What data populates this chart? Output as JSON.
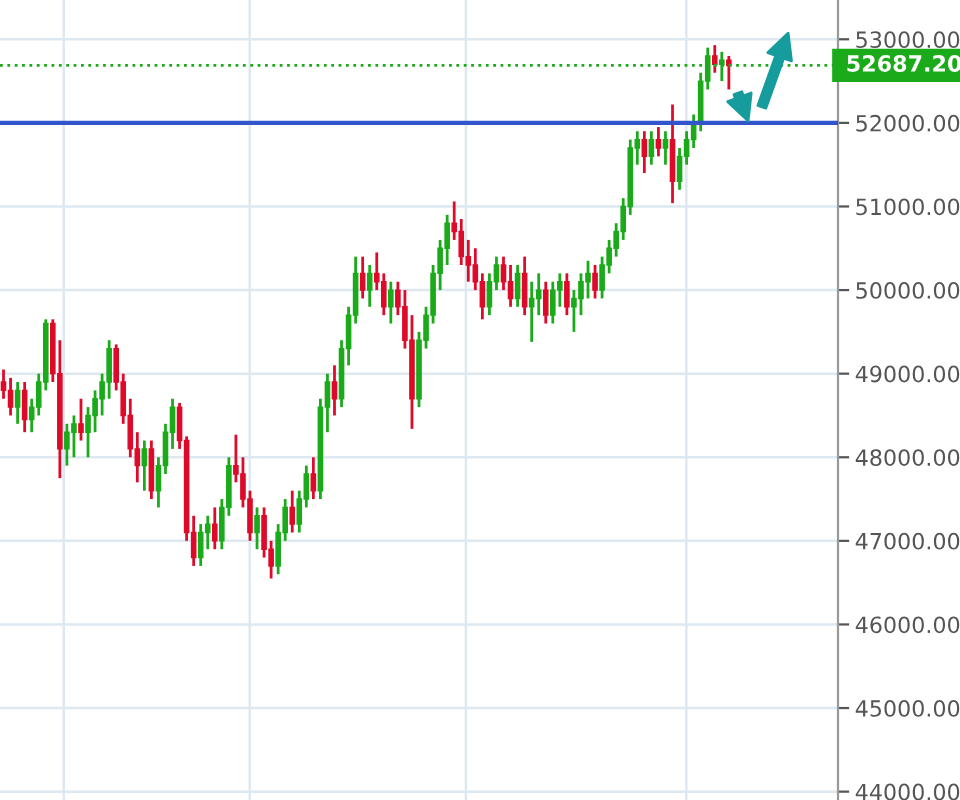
{
  "chart_data": {
    "type": "candlestick",
    "categories": [
      null,
      null,
      null,
      null,
      null,
      null,
      null,
      null,
      null,
      null,
      null,
      null,
      null,
      null,
      null,
      null,
      null,
      null,
      null,
      null,
      null,
      null,
      null,
      null,
      null,
      null,
      null,
      null,
      null,
      null,
      null,
      null,
      null,
      null,
      null,
      null,
      null,
      null,
      null,
      null,
      null,
      null,
      null,
      null,
      null,
      null,
      null,
      null,
      null,
      null,
      null,
      null,
      null,
      null,
      null,
      null,
      null,
      null,
      null,
      null,
      null,
      null,
      null,
      null,
      null,
      null,
      null,
      null,
      null,
      null,
      null,
      null,
      null,
      null,
      null,
      null,
      null,
      null,
      null,
      null,
      null,
      null,
      null,
      null,
      null,
      null,
      null,
      null,
      null,
      null,
      null,
      null,
      null,
      null,
      null,
      null,
      null,
      null,
      null,
      null,
      null,
      null,
      null,
      null,
      null,
      null,
      null,
      null,
      null,
      null,
      null,
      null,
      null,
      null,
      null,
      null,
      null,
      null,
      null
    ],
    "ohlc": [
      [
        48900,
        49050,
        48700,
        48800
      ],
      [
        48800,
        48950,
        48500,
        48600
      ],
      [
        48600,
        48900,
        48400,
        48800
      ],
      [
        48800,
        48900,
        48300,
        48450
      ],
      [
        48450,
        48700,
        48300,
        48600
      ],
      [
        48600,
        49000,
        48500,
        48900
      ],
      [
        48900,
        49650,
        48800,
        49600
      ],
      [
        49600,
        49650,
        48900,
        49000
      ],
      [
        49000,
        49400,
        47750,
        48100
      ],
      [
        48100,
        48400,
        47900,
        48300
      ],
      [
        48300,
        48500,
        48000,
        48400
      ],
      [
        48400,
        48700,
        48200,
        48300
      ],
      [
        48300,
        48600,
        48000,
        48500
      ],
      [
        48500,
        48800,
        48300,
        48700
      ],
      [
        48700,
        49000,
        48500,
        48900
      ],
      [
        48900,
        49400,
        48700,
        49300
      ],
      [
        49300,
        49350,
        48800,
        48900
      ],
      [
        48900,
        49000,
        48400,
        48500
      ],
      [
        48500,
        48700,
        48000,
        48100
      ],
      [
        48100,
        48300,
        47700,
        47900
      ],
      [
        47900,
        48200,
        47600,
        48100
      ],
      [
        48100,
        48200,
        47500,
        47600
      ],
      [
        47600,
        48000,
        47400,
        47900
      ],
      [
        47900,
        48400,
        47800,
        48300
      ],
      [
        48300,
        48700,
        48100,
        48600
      ],
      [
        48600,
        48650,
        48100,
        48200
      ],
      [
        48200,
        48250,
        47000,
        47100
      ],
      [
        47100,
        47300,
        46700,
        46800
      ],
      [
        46800,
        47200,
        46700,
        47100
      ],
      [
        47100,
        47300,
        46900,
        47200
      ],
      [
        47200,
        47400,
        46900,
        47000
      ],
      [
        47000,
        47500,
        46900,
        47400
      ],
      [
        47400,
        48000,
        47300,
        47900
      ],
      [
        47900,
        48270,
        47700,
        47800
      ],
      [
        47800,
        48000,
        47400,
        47500
      ],
      [
        47500,
        47600,
        47000,
        47100
      ],
      [
        47100,
        47400,
        46900,
        47300
      ],
      [
        47300,
        47400,
        46800,
        46900
      ],
      [
        46900,
        47000,
        46550,
        46700
      ],
      [
        46700,
        47200,
        46600,
        47100
      ],
      [
        47100,
        47500,
        47000,
        47400
      ],
      [
        47400,
        47600,
        47100,
        47200
      ],
      [
        47200,
        47600,
        47100,
        47500
      ],
      [
        47500,
        47900,
        47400,
        47800
      ],
      [
        47800,
        48000,
        47500,
        47600
      ],
      [
        47600,
        48700,
        47500,
        48600
      ],
      [
        48600,
        49000,
        48300,
        48900
      ],
      [
        48900,
        49100,
        48500,
        48700
      ],
      [
        48700,
        49400,
        48600,
        49300
      ],
      [
        49300,
        49800,
        49100,
        49700
      ],
      [
        49700,
        50400,
        49600,
        50200
      ],
      [
        50200,
        50400,
        49900,
        50000
      ],
      [
        50000,
        50300,
        49800,
        50200
      ],
      [
        50200,
        50450,
        50000,
        50100
      ],
      [
        50100,
        50200,
        49700,
        49800
      ],
      [
        49800,
        50100,
        49600,
        50000
      ],
      [
        50000,
        50100,
        49700,
        49800
      ],
      [
        49800,
        50000,
        49300,
        49400
      ],
      [
        49400,
        49700,
        48340,
        48700
      ],
      [
        48700,
        49500,
        48600,
        49400
      ],
      [
        49400,
        49800,
        49300,
        49700
      ],
      [
        49700,
        50300,
        49600,
        50200
      ],
      [
        50200,
        50600,
        50000,
        50500
      ],
      [
        50500,
        50900,
        50300,
        50800
      ],
      [
        50800,
        51060,
        50600,
        50700
      ],
      [
        50700,
        50850,
        50300,
        50400
      ],
      [
        50400,
        50600,
        50100,
        50300
      ],
      [
        50300,
        50500,
        50000,
        50100
      ],
      [
        50100,
        50200,
        49650,
        49800
      ],
      [
        49800,
        50200,
        49700,
        50100
      ],
      [
        50100,
        50400,
        50000,
        50300
      ],
      [
        50300,
        50400,
        50000,
        50100
      ],
      [
        50100,
        50300,
        49800,
        49900
      ],
      [
        49900,
        50300,
        49800,
        50200
      ],
      [
        50200,
        50400,
        49700,
        49800
      ],
      [
        49800,
        50100,
        49380,
        49900
      ],
      [
        49900,
        50200,
        49700,
        50000
      ],
      [
        50000,
        50100,
        49600,
        49700
      ],
      [
        49700,
        50100,
        49600,
        50000
      ],
      [
        50000,
        50200,
        49800,
        50100
      ],
      [
        50100,
        50200,
        49700,
        49800
      ],
      [
        49800,
        50000,
        49500,
        49900
      ],
      [
        49900,
        50200,
        49700,
        50100
      ],
      [
        50100,
        50350,
        49900,
        50200
      ],
      [
        50200,
        50300,
        49900,
        50000
      ],
      [
        50000,
        50400,
        49900,
        50300
      ],
      [
        50300,
        50600,
        50200,
        50500
      ],
      [
        50500,
        50800,
        50400,
        50700
      ],
      [
        50700,
        51100,
        50600,
        51000
      ],
      [
        51000,
        51800,
        50900,
        51700
      ],
      [
        51700,
        51900,
        51500,
        51800
      ],
      [
        51800,
        51900,
        51400,
        51600
      ],
      [
        51600,
        51900,
        51500,
        51800
      ],
      [
        51800,
        51950,
        51600,
        51700
      ],
      [
        51700,
        51900,
        51500,
        51800
      ],
      [
        51800,
        52220,
        51040,
        51300
      ],
      [
        51300,
        51700,
        51200,
        51600
      ],
      [
        51600,
        51900,
        51500,
        51800
      ],
      [
        51800,
        52100,
        51700,
        52000
      ],
      [
        52000,
        52600,
        51900,
        52500
      ],
      [
        52500,
        52900,
        52400,
        52800
      ],
      [
        52800,
        52930,
        52600,
        52700
      ],
      [
        52700,
        52850,
        52500,
        52750
      ],
      [
        52750,
        52800,
        52400,
        52687.2
      ],
      null,
      null,
      null,
      null,
      null,
      null,
      null,
      null,
      null,
      null,
      null,
      null,
      null,
      null,
      null
    ],
    "colors": [
      "#dd0a2a",
      "#dd0a2a",
      "#1aaa1a",
      "#dd0a2a",
      "#1aaa1a",
      "#1aaa1a",
      "#1aaa1a",
      "#dd0a2a",
      "#dd0a2a",
      "#1aaa1a",
      "#1aaa1a",
      "#dd0a2a",
      "#1aaa1a",
      "#1aaa1a",
      "#1aaa1a",
      "#1aaa1a",
      "#dd0a2a",
      "#dd0a2a",
      "#dd0a2a",
      "#dd0a2a",
      "#1aaa1a",
      "#dd0a2a",
      "#1aaa1a",
      "#1aaa1a",
      "#1aaa1a",
      "#dd0a2a",
      "#dd0a2a",
      "#dd0a2a",
      "#1aaa1a",
      "#1aaa1a",
      "#dd0a2a",
      "#1aaa1a",
      "#1aaa1a",
      "#dd0a2a",
      "#dd0a2a",
      "#dd0a2a",
      "#1aaa1a",
      "#dd0a2a",
      "#dd0a2a",
      "#1aaa1a",
      "#1aaa1a",
      "#dd0a2a",
      "#1aaa1a",
      "#1aaa1a",
      "#dd0a2a",
      "#1aaa1a",
      "#1aaa1a",
      "#dd0a2a",
      "#1aaa1a",
      "#1aaa1a",
      "#1aaa1a",
      "#dd0a2a",
      "#1aaa1a",
      "#dd0a2a",
      "#dd0a2a",
      "#1aaa1a",
      "#dd0a2a",
      "#dd0a2a",
      "#dd0a2a",
      "#1aaa1a",
      "#1aaa1a",
      "#1aaa1a",
      "#1aaa1a",
      "#1aaa1a",
      "#dd0a2a",
      "#dd0a2a",
      "#dd0a2a",
      "#dd0a2a",
      "#dd0a2a",
      "#1aaa1a",
      "#1aaa1a",
      "#dd0a2a",
      "#dd0a2a",
      "#1aaa1a",
      "#dd0a2a",
      "#1aaa1a",
      "#1aaa1a",
      "#dd0a2a",
      "#1aaa1a",
      "#1aaa1a",
      "#dd0a2a",
      "#1aaa1a",
      "#1aaa1a",
      "#1aaa1a",
      "#dd0a2a",
      "#1aaa1a",
      "#1aaa1a",
      "#1aaa1a",
      "#1aaa1a",
      "#1aaa1a",
      "#1aaa1a",
      "#dd0a2a",
      "#1aaa1a",
      "#dd0a2a",
      "#1aaa1a",
      "#dd0a2a",
      "#1aaa1a",
      "#1aaa1a",
      "#1aaa1a",
      "#1aaa1a",
      "#1aaa1a",
      "#dd0a2a",
      "#1aaa1a",
      "#dd0a2a",
      null,
      null,
      null,
      null,
      null,
      null,
      null,
      null,
      null,
      null,
      null,
      null,
      null,
      null,
      null
    ],
    "ylim": [
      43900,
      53470
    ],
    "yticks": [
      {
        "value": 44000,
        "label": "44000.00"
      },
      {
        "value": 45000,
        "label": "45000.00"
      },
      {
        "value": 46000,
        "label": "46000.00"
      },
      {
        "value": 47000,
        "label": "47000.00"
      },
      {
        "value": 48000,
        "label": "48000.00"
      },
      {
        "value": 49000,
        "label": "49000.00"
      },
      {
        "value": 50000,
        "label": "50000.00"
      },
      {
        "value": 51000,
        "label": "51000.00"
      },
      {
        "value": 52000,
        "label": "52000.00"
      },
      {
        "value": 53000,
        "label": "53000.00"
      }
    ],
    "ref_lines": [
      {
        "axis": "y",
        "value": 52687.2,
        "label": "52687.20",
        "color": "#1aaa1a",
        "line_style": "dotted"
      },
      {
        "axis": "y",
        "value": 52000,
        "label": null,
        "color": "#3355cc",
        "line_style": "solid"
      }
    ],
    "grid": true,
    "legend": false
  }
}
